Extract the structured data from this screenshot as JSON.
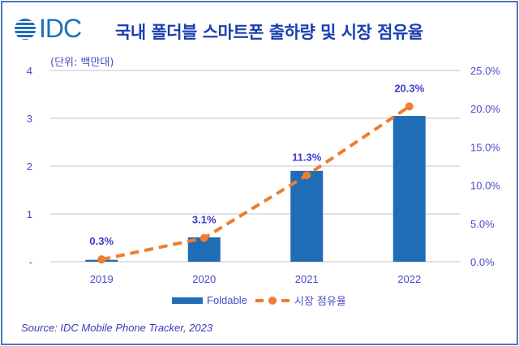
{
  "logo": {
    "text": "IDC"
  },
  "title": "국내 폴더블 스마트폰 출하량 및 시장 점유율",
  "unit_label": "(단위: 백만대)",
  "source": "Source: IDC Mobile Phone Tracker, 2023",
  "colors": {
    "bar": "#1f6db5",
    "line": "#ed7d31",
    "text": "#4a4ac8",
    "title": "#1a3fb0",
    "grid": "#d9d9d9",
    "border": "#4a7ab8"
  },
  "chart_data": {
    "type": "bar",
    "title": "국내 폴더블 스마트폰 출하량 및 시장 점유율",
    "xlabel": "",
    "ylabel": "(단위: 백만대)",
    "y2label": "",
    "categories": [
      "2019",
      "2020",
      "2021",
      "2022"
    ],
    "series": [
      {
        "name": "Foldable",
        "type": "bar",
        "axis": "left",
        "values": [
          0.04,
          0.51,
          1.9,
          3.05
        ]
      },
      {
        "name": "시장 점유율",
        "type": "line",
        "axis": "right",
        "style": "dashed",
        "marker": "circle",
        "values": [
          0.3,
          3.1,
          11.3,
          20.3
        ],
        "data_labels": [
          "0.3%",
          "3.1%",
          "11.3%",
          "20.3%"
        ]
      }
    ],
    "ylim": [
      0,
      4
    ],
    "y2lim": [
      0,
      25
    ],
    "yticks": [
      "-",
      "1",
      "2",
      "3",
      "4"
    ],
    "y2ticks": [
      "0.0%",
      "5.0%",
      "10.0%",
      "15.0%",
      "20.0%",
      "25.0%"
    ],
    "grid": true,
    "legend": "bottom",
    "legend_entries": [
      "Foldable",
      "시장 점유율"
    ]
  }
}
